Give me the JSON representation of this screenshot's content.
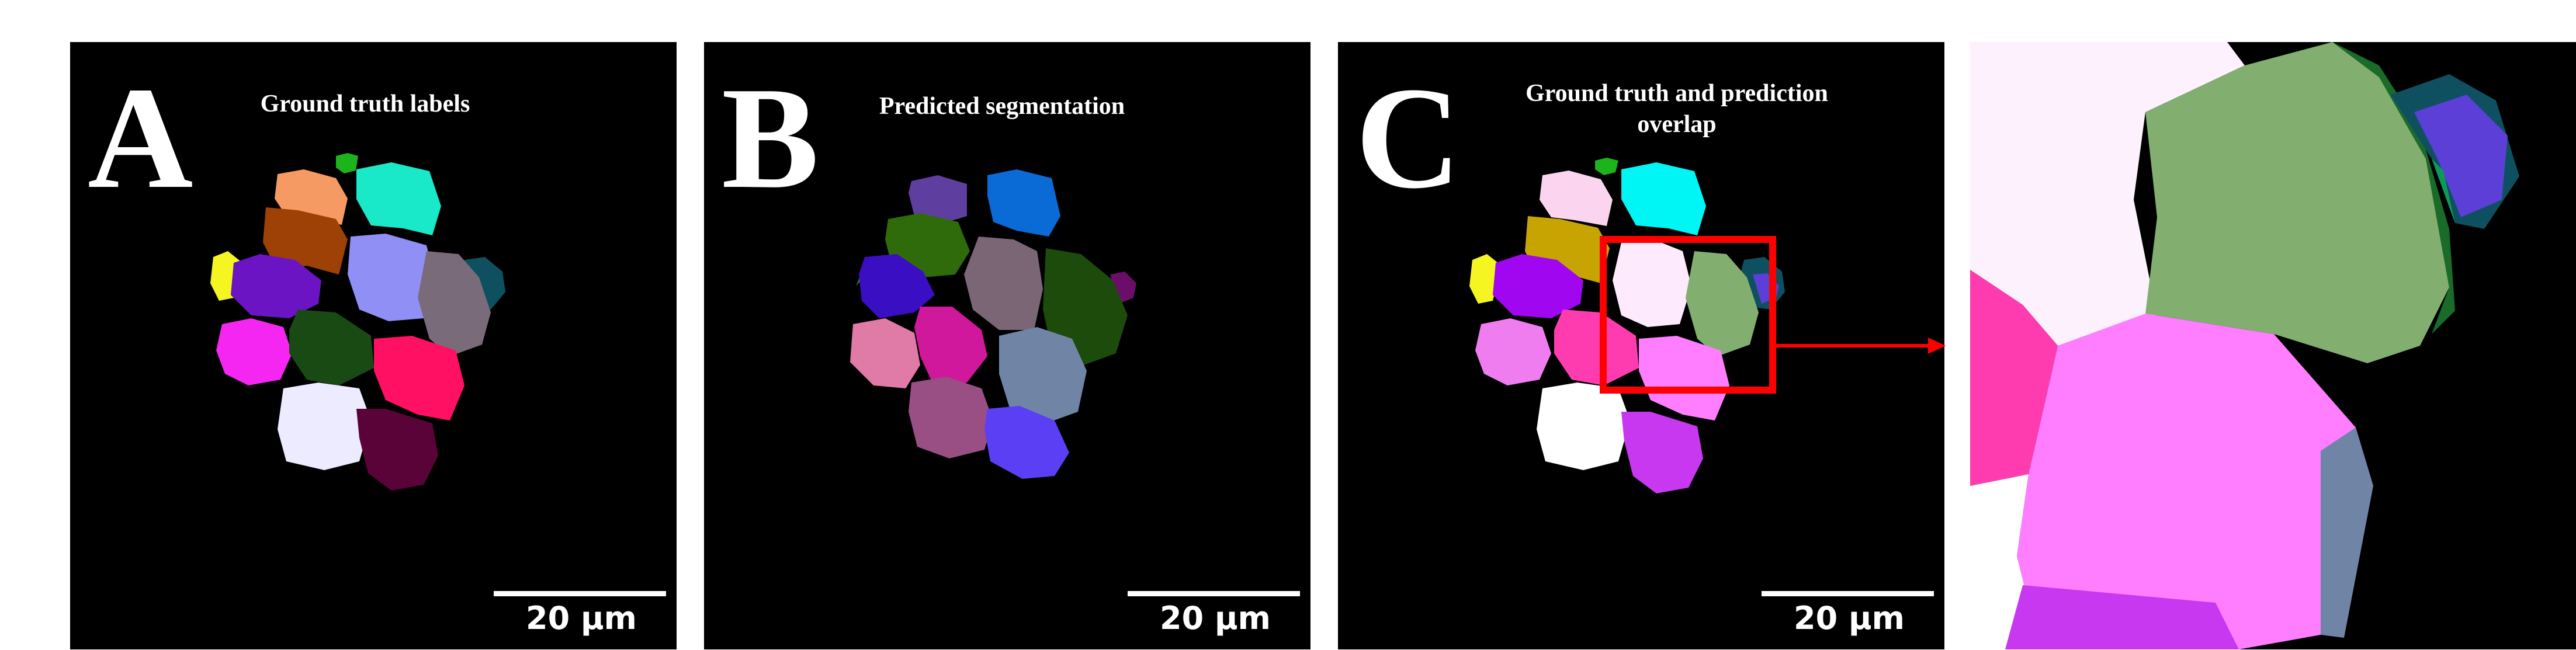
{
  "panels": {
    "a": {
      "letter": "A",
      "title": "Ground truth labels",
      "scale": "20 µm"
    },
    "b": {
      "letter": "B",
      "title": "Predicted segmentation",
      "scale": "20 µm"
    },
    "c": {
      "letter": "C",
      "title_line1": "Ground truth and prediction",
      "title_line2": "overlap",
      "scale": "20 µm"
    }
  },
  "colors": {
    "background": "#000000",
    "highlight_box": "#ff0000",
    "scale_bar": "#ffffff"
  }
}
